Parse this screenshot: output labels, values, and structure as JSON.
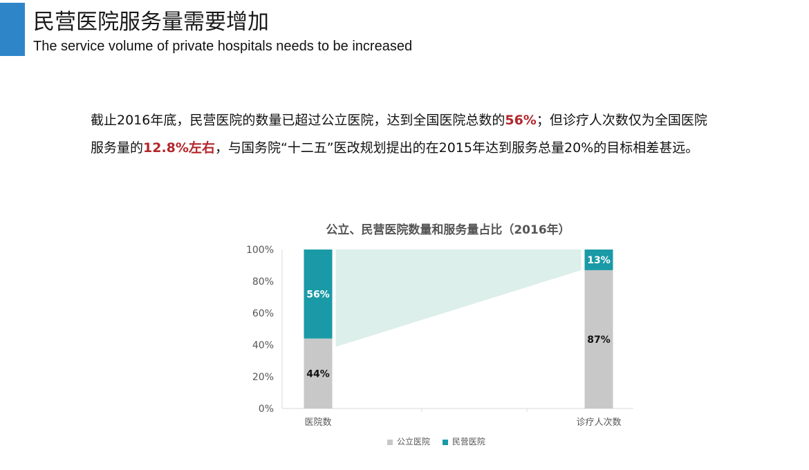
{
  "header": {
    "title": "民营医院服务量需要增加",
    "subtitle": "The service volume of private hospitals needs to be increased"
  },
  "body": {
    "line1_part1": "截止2016年底，民营医院的数量已超过公立医院，达到全国医院总数的",
    "line1_highlight": "56%",
    "line1_part2": "；但诊疗人次数仅为全国医院",
    "line2_part1": "服务量的",
    "line2_highlight": "12.8%左右",
    "line2_part2": "，与国务院“十二五”医改规划提出的在2015年达到服务总量20%的目标相差甚远。"
  },
  "colors": {
    "accent": "#2e86c9",
    "highlight": "#b3262b",
    "public": "#c8c8c8",
    "private": "#1a9aa7",
    "band": "#dcefea"
  },
  "chart_data": {
    "type": "bar",
    "stacked": true,
    "title": "公立、民营医院数量和服务量占比（2016年）",
    "categories": [
      "医院数",
      "诊疗人次数"
    ],
    "series": [
      {
        "name": "公立医院",
        "values": [
          44,
          87
        ],
        "labels": [
          "44%",
          "87%"
        ]
      },
      {
        "name": "民营医院",
        "values": [
          56,
          13
        ],
        "labels": [
          "56%",
          "13%"
        ]
      }
    ],
    "ylim": [
      0,
      100
    ],
    "yticks": [
      "0%",
      "20%",
      "40%",
      "60%",
      "80%",
      "100%"
    ],
    "legend": "bottom"
  }
}
